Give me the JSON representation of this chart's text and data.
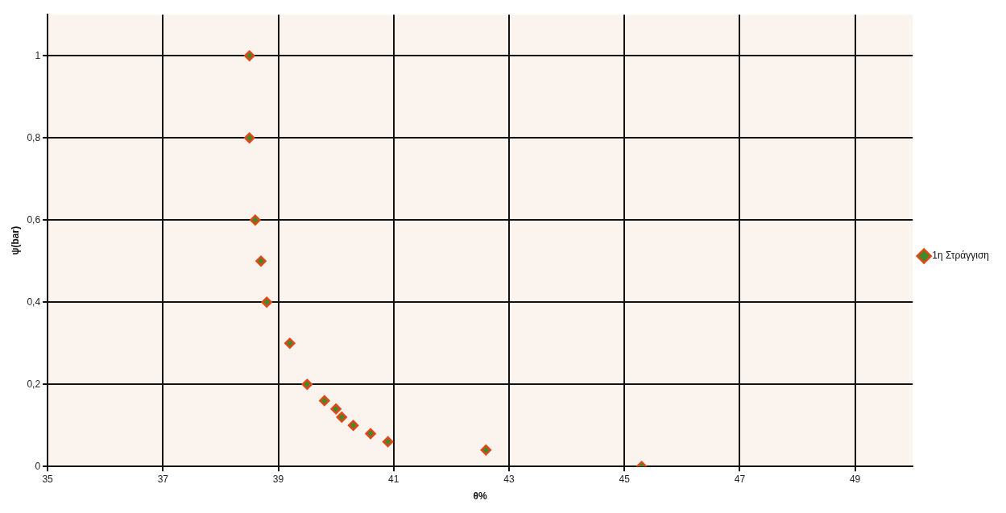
{
  "chart_data": {
    "type": "scatter",
    "xlabel": "θ%",
    "ylabel": "ψ(bar)",
    "xlim": [
      35,
      50
    ],
    "xticks": [
      35,
      37,
      39,
      41,
      43,
      45,
      47,
      49
    ],
    "ylim": [
      0,
      1.1
    ],
    "yticks": [
      0,
      {
        "value": 0.2,
        "label": "0,2"
      },
      {
        "value": 0.4,
        "label": "0,4"
      },
      {
        "value": 0.6,
        "label": "0,6"
      },
      {
        "value": 0.8,
        "label": "0,8"
      },
      1
    ],
    "grid": true,
    "legend": "right",
    "marker": "diamond",
    "series": [
      {
        "name": "1η Στράγγιση",
        "color": "#e04818",
        "x": [
          38.5,
          38.5,
          38.6,
          38.7,
          38.8,
          39.2,
          39.5,
          39.8,
          40.0,
          40.1,
          40.3,
          40.6,
          40.9,
          42.6,
          45.3
        ],
        "values": [
          1,
          0.8,
          0.6,
          0.5,
          0.4,
          0.3,
          0.2,
          0.16,
          0.14,
          0.12,
          0.1,
          0.08,
          0.06,
          0.04,
          0
        ]
      }
    ]
  }
}
